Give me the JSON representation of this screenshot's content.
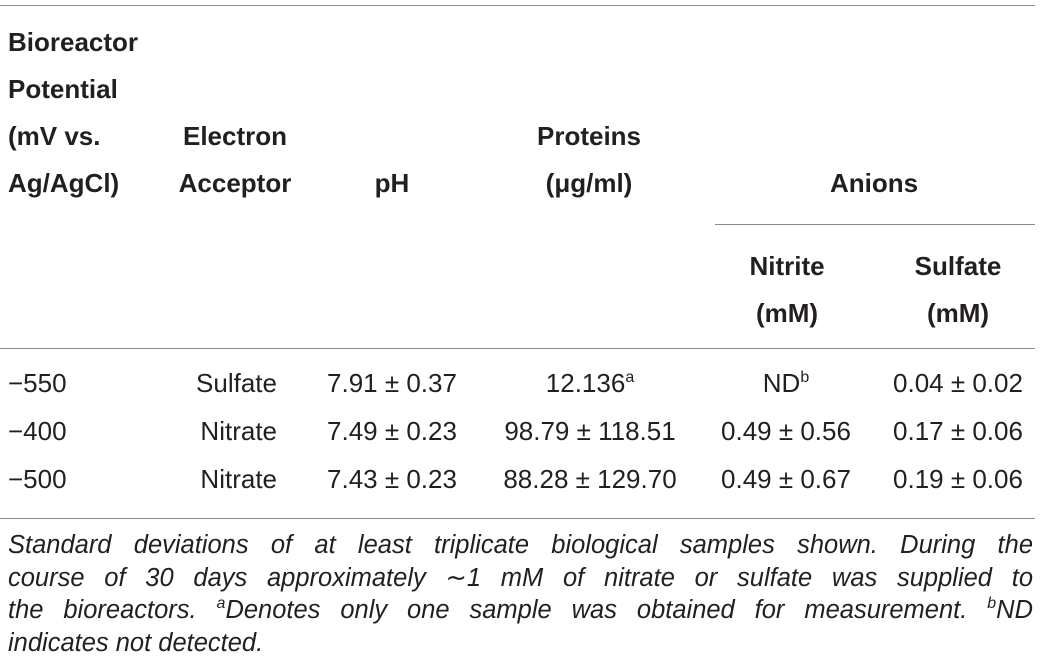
{
  "table": {
    "header": {
      "potential": [
        "Bioreactor",
        "Potential",
        "(mV vs.",
        "Ag/AgCl)"
      ],
      "acceptor": [
        "Electron",
        "Acceptor"
      ],
      "ph": "pH",
      "proteins": [
        "Proteins",
        "(μg/ml)"
      ],
      "anions": "Anions",
      "nitrite": [
        "Nitrite",
        "(mM)"
      ],
      "sulfate": [
        "Sulfate",
        "(mM)"
      ]
    },
    "rows": [
      [
        "−550",
        "Sulfate",
        "7.91 ± 0.37",
        {
          "text": "12.136",
          "sup": "a"
        },
        {
          "text": "ND",
          "sup": "b"
        },
        "0.04 ± 0.02"
      ],
      [
        "−400",
        "Nitrate",
        "7.49 ± 0.23",
        "98.79 ± 118.51",
        "0.49 ± 0.56",
        "0.17 ± 0.06"
      ],
      [
        "−500",
        "Nitrate",
        "7.43 ± 0.23",
        "88.28 ± 129.70",
        "0.49 ± 0.67",
        "0.19 ± 0.06"
      ]
    ],
    "footnote": [
      [
        {
          "text": "Standard deviations of at least triplicate biological samples shown. During the"
        }
      ],
      [
        {
          "text": "course of 30 days approximately ∼1 mM of nitrate or sulfate was supplied to"
        }
      ],
      [
        {
          "text": "the bioreactors. "
        },
        {
          "sup": "a"
        },
        {
          "text": "Denotes only one sample was obtained for measurement. "
        },
        {
          "sup": "b"
        },
        {
          "text": "ND"
        }
      ],
      [
        {
          "text": "indicates not detected."
        }
      ]
    ]
  }
}
